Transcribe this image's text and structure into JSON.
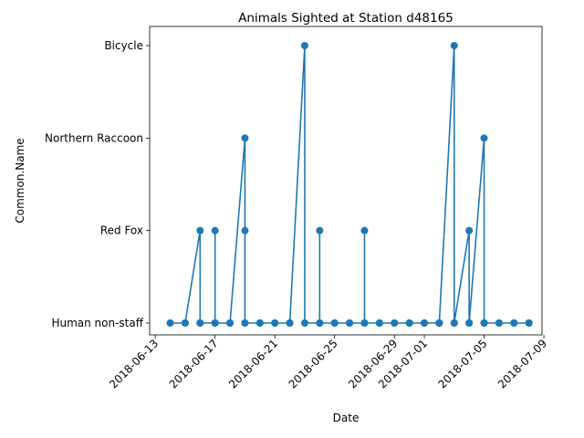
{
  "chart_data": {
    "type": "line",
    "title": "Animals Sighted at Station d48165",
    "xlabel": "Date",
    "ylabel": "Common.Name",
    "y_categories": [
      "Human non-staff",
      "Red Fox",
      "Northern Raccoon",
      "Bicycle"
    ],
    "x_ticks": [
      "2018-06-13",
      "2018-06-17",
      "2018-06-21",
      "2018-06-25",
      "2018-06-29",
      "2018-07-01",
      "2018-07-05",
      "2018-07-09"
    ],
    "xlim": [
      "2018-06-12T15:00",
      "2018-07-08T21:00"
    ],
    "grid": false,
    "series": [
      {
        "color": "#1f77b4",
        "marker": "circle",
        "points": [
          [
            "2018-06-14",
            "Human non-staff"
          ],
          [
            "2018-06-15",
            "Human non-staff"
          ],
          [
            "2018-06-15",
            "Human non-staff"
          ],
          [
            "2018-06-16",
            "Red Fox"
          ],
          [
            "2018-06-16",
            "Human non-staff"
          ],
          [
            "2018-06-16",
            "Human non-staff"
          ],
          [
            "2018-06-17",
            "Human non-staff"
          ],
          [
            "2018-06-17",
            "Red Fox"
          ],
          [
            "2018-06-17",
            "Human non-staff"
          ],
          [
            "2018-06-18",
            "Human non-staff"
          ],
          [
            "2018-06-18",
            "Human non-staff"
          ],
          [
            "2018-06-19",
            "Northern Raccoon"
          ],
          [
            "2018-06-19",
            "Red Fox"
          ],
          [
            "2018-06-19",
            "Human non-staff"
          ],
          [
            "2018-06-19",
            "Human non-staff"
          ],
          [
            "2018-06-20",
            "Human non-staff"
          ],
          [
            "2018-06-20",
            "Human non-staff"
          ],
          [
            "2018-06-21",
            "Human non-staff"
          ],
          [
            "2018-06-21",
            "Human non-staff"
          ],
          [
            "2018-06-22",
            "Human non-staff"
          ],
          [
            "2018-06-22",
            "Human non-staff"
          ],
          [
            "2018-06-23",
            "Bicycle"
          ],
          [
            "2018-06-23",
            "Human non-staff"
          ],
          [
            "2018-06-24",
            "Human non-staff"
          ],
          [
            "2018-06-24",
            "Red Fox"
          ],
          [
            "2018-06-24",
            "Human non-staff"
          ],
          [
            "2018-06-25",
            "Human non-staff"
          ],
          [
            "2018-06-25",
            "Human non-staff"
          ],
          [
            "2018-06-26",
            "Human non-staff"
          ],
          [
            "2018-06-26",
            "Human non-staff"
          ],
          [
            "2018-06-27",
            "Human non-staff"
          ],
          [
            "2018-06-27",
            "Red Fox"
          ],
          [
            "2018-06-27",
            "Human non-staff"
          ],
          [
            "2018-06-28",
            "Human non-staff"
          ],
          [
            "2018-06-28",
            "Human non-staff"
          ],
          [
            "2018-06-29",
            "Human non-staff"
          ],
          [
            "2018-06-29",
            "Human non-staff"
          ],
          [
            "2018-06-30",
            "Human non-staff"
          ],
          [
            "2018-06-30",
            "Human non-staff"
          ],
          [
            "2018-07-01",
            "Human non-staff"
          ],
          [
            "2018-07-01",
            "Human non-staff"
          ],
          [
            "2018-07-02",
            "Human non-staff"
          ],
          [
            "2018-07-02",
            "Human non-staff"
          ],
          [
            "2018-07-03",
            "Bicycle"
          ],
          [
            "2018-07-03",
            "Human non-staff"
          ],
          [
            "2018-07-03",
            "Human non-staff"
          ],
          [
            "2018-07-04",
            "Red Fox"
          ],
          [
            "2018-07-04",
            "Human non-staff"
          ],
          [
            "2018-07-04",
            "Human non-staff"
          ],
          [
            "2018-07-05",
            "Northern Raccoon"
          ],
          [
            "2018-07-05",
            "Human non-staff"
          ],
          [
            "2018-07-05",
            "Human non-staff"
          ],
          [
            "2018-07-06",
            "Human non-staff"
          ],
          [
            "2018-07-06",
            "Human non-staff"
          ],
          [
            "2018-07-07",
            "Human non-staff"
          ],
          [
            "2018-07-07",
            "Human non-staff"
          ],
          [
            "2018-07-08",
            "Human non-staff"
          ],
          [
            "2018-07-08",
            "Human non-staff"
          ]
        ]
      }
    ]
  }
}
